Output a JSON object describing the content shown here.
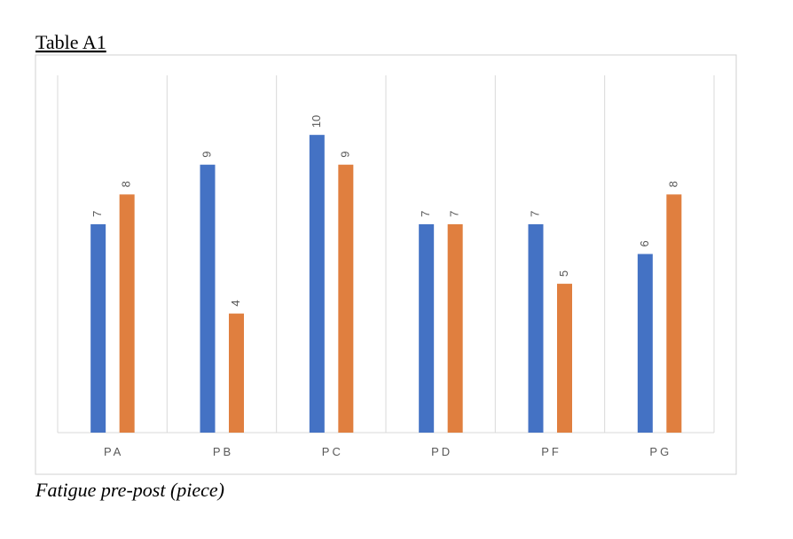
{
  "chart_data": {
    "type": "bar",
    "title": "Table A1",
    "caption": "Fatigue pre-post (piece)",
    "categories": [
      "PA",
      "PB",
      "PC",
      "PD",
      "PF",
      "PG"
    ],
    "series": [
      {
        "color": "#4472c4",
        "values": [
          7,
          9,
          10,
          7,
          7,
          6
        ]
      },
      {
        "color": "#e07f3f",
        "values": [
          8,
          4,
          9,
          7,
          5,
          8
        ]
      }
    ],
    "ylim": [
      0,
      12
    ],
    "grid": true
  }
}
